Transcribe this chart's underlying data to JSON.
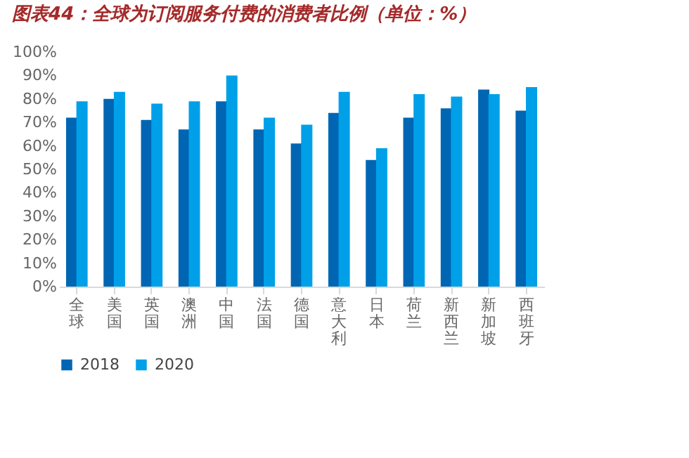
{
  "chart_data": {
    "type": "bar",
    "title": "图表44：全球为订阅服务付费的消费者比例（单位：%）",
    "categories": [
      "全球",
      "美国",
      "英国",
      "澳洲",
      "中国",
      "法国",
      "德国",
      "意大利",
      "日本",
      "荷兰",
      "新西兰",
      "新加坡",
      "西班牙"
    ],
    "series": [
      {
        "name": "2018",
        "color": "#0066b3",
        "values": [
          72,
          80,
          71,
          67,
          79,
          67,
          61,
          74,
          54,
          72,
          76,
          84,
          75
        ]
      },
      {
        "name": "2020",
        "color": "#00a0e9",
        "values": [
          79,
          83,
          78,
          79,
          90,
          72,
          69,
          83,
          59,
          82,
          81,
          82,
          85
        ]
      }
    ],
    "ylim": [
      0,
      100
    ],
    "yticks": [
      {
        "value": 0,
        "label": "0%"
      },
      {
        "value": 10,
        "label": "10%"
      },
      {
        "value": 20,
        "label": "20%"
      },
      {
        "value": 30,
        "label": "30%"
      },
      {
        "value": 40,
        "label": "40%"
      },
      {
        "value": 50,
        "label": "50%"
      },
      {
        "value": 60,
        "label": "60%"
      },
      {
        "value": 70,
        "label": "70%"
      },
      {
        "value": 80,
        "label": "80%"
      },
      {
        "value": 90,
        "label": "90%"
      },
      {
        "value": 100,
        "label": "100%"
      }
    ],
    "grid": false,
    "legend": "bottom"
  }
}
